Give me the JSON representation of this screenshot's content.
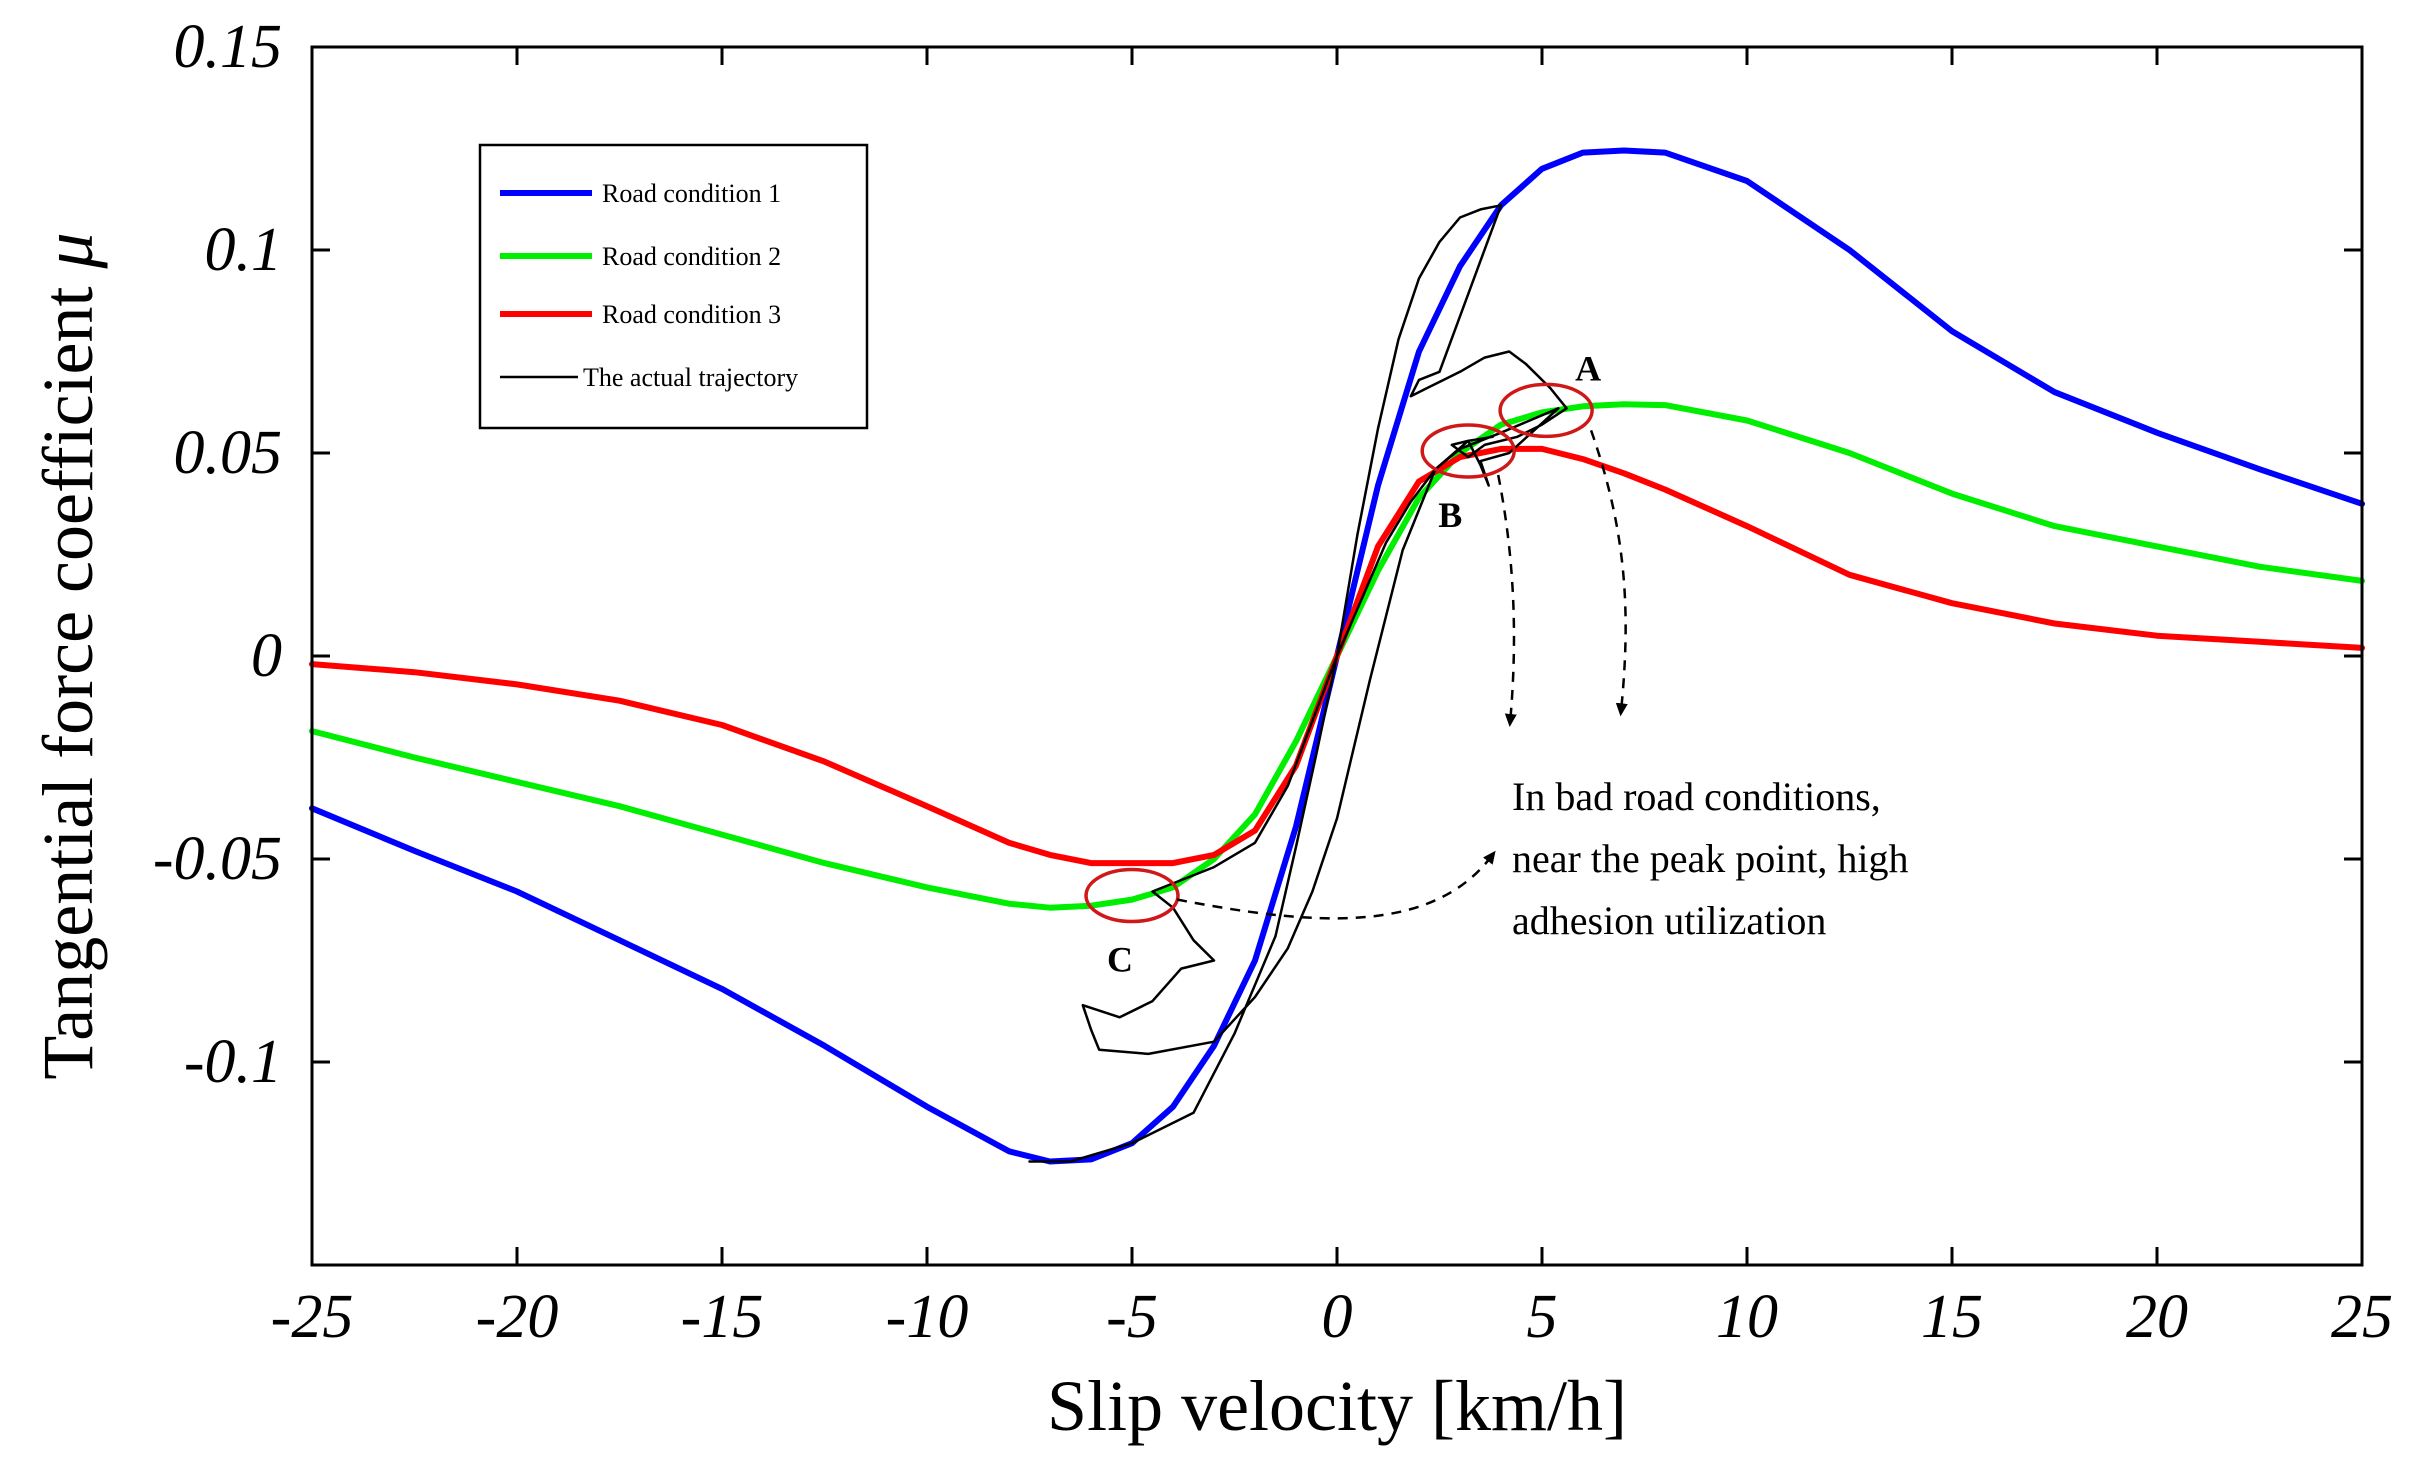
{
  "chart_data": {
    "type": "line",
    "title": "",
    "xlabel": "Slip velocity [km/h]",
    "ylabel": "Tangential force coefficient",
    "ylabel_symbol": "μ",
    "xlim": [
      -25,
      25
    ],
    "ylim": [
      -0.15,
      0.15
    ],
    "x_ticks": [
      -25,
      -20,
      -15,
      -10,
      -5,
      0,
      5,
      10,
      15,
      20,
      25
    ],
    "x_tick_labels": [
      "-25",
      "-20",
      "-15",
      "-10",
      "-5",
      "0",
      "5",
      "10",
      "15",
      "20",
      "25"
    ],
    "y_ticks": [
      -0.1,
      -0.05,
      0,
      0.05,
      0.1,
      0.15
    ],
    "y_tick_labels": [
      "-0.1",
      "-0.05",
      "0",
      "0.05",
      "0.1",
      "0.15"
    ],
    "grid": false,
    "legend_position": "top-left",
    "series": [
      {
        "name": "Road condition 1",
        "color": "#0000ff",
        "x": [
          -25,
          -22.5,
          -20,
          -17.5,
          -15,
          -12.5,
          -10,
          -8,
          -7,
          -6,
          -5,
          -4,
          -3,
          -2,
          -1,
          0,
          1,
          2,
          3,
          4,
          5,
          6,
          7,
          8,
          10,
          12.5,
          15,
          17.5,
          20,
          22.5,
          25
        ],
        "y": [
          -0.0375,
          -0.048,
          -0.058,
          -0.07,
          -0.082,
          -0.096,
          -0.111,
          -0.122,
          -0.1245,
          -0.124,
          -0.12,
          -0.111,
          -0.096,
          -0.075,
          -0.042,
          0,
          0.042,
          0.075,
          0.096,
          0.111,
          0.12,
          0.124,
          0.1245,
          0.124,
          0.117,
          0.1,
          0.08,
          0.065,
          0.055,
          0.046,
          0.0375
        ]
      },
      {
        "name": "Road condition 2",
        "color": "#00ee00",
        "x": [
          -25,
          -22.5,
          -20,
          -17.5,
          -15,
          -12.5,
          -10,
          -8,
          -7,
          -6,
          -5,
          -4,
          -3,
          -2,
          -1,
          0,
          1,
          2,
          3,
          4,
          5,
          6,
          7,
          8,
          10,
          12.5,
          15,
          17.5,
          20,
          22.5,
          25
        ],
        "y": [
          -0.0185,
          -0.025,
          -0.031,
          -0.037,
          -0.044,
          -0.051,
          -0.057,
          -0.061,
          -0.062,
          -0.0615,
          -0.06,
          -0.057,
          -0.05,
          -0.039,
          -0.021,
          0,
          0.021,
          0.039,
          0.05,
          0.057,
          0.06,
          0.0615,
          0.062,
          0.0618,
          0.058,
          0.05,
          0.04,
          0.032,
          0.027,
          0.022,
          0.0185
        ]
      },
      {
        "name": "Road condition 3",
        "color": "#ff0000",
        "x": [
          -25,
          -22.5,
          -20,
          -17.5,
          -15,
          -12.5,
          -10,
          -8,
          -7,
          -6,
          -5,
          -4,
          -3,
          -2,
          -1,
          0,
          1,
          2,
          3,
          4,
          5,
          6,
          7,
          8,
          10,
          12.5,
          15,
          17.5,
          20,
          22.5,
          25
        ],
        "y": [
          -0.002,
          -0.004,
          -0.007,
          -0.011,
          -0.017,
          -0.026,
          -0.037,
          -0.046,
          -0.049,
          -0.051,
          -0.051,
          -0.051,
          -0.049,
          -0.043,
          -0.027,
          0,
          0.027,
          0.043,
          0.049,
          0.051,
          0.051,
          0.0485,
          0.045,
          0.041,
          0.032,
          0.02,
          0.013,
          0.008,
          0.005,
          0.0035,
          0.002
        ]
      },
      {
        "name": "The actual trajectory",
        "color": "#000000",
        "x": [
          -7.5,
          -6.5,
          -5,
          -3.5,
          -2.5,
          -1.5,
          -1,
          -0.5,
          0,
          0.5,
          1,
          1.5,
          2,
          2.5,
          3,
          3.5,
          4,
          2.5,
          2,
          1.8,
          2.2,
          3.0,
          3.6,
          4.2,
          4.6,
          5.2,
          5.6,
          5.0,
          4.4,
          3.6,
          3.2,
          2.8,
          3.2,
          3.5,
          3.7,
          3.5,
          4.2,
          5.4,
          4.0,
          3.0,
          2.4,
          1.8,
          1.2,
          0.6,
          0,
          -0.6,
          -1.2,
          -2,
          -3,
          -4,
          -4.5,
          -4.0,
          -3.5,
          -3.0,
          -3.8,
          -4.5,
          -5.3,
          -6.2,
          -6.0,
          -5.8,
          -4.6,
          -3.0,
          -2.0,
          -1.2,
          -0.6,
          0,
          0.8,
          1.6,
          2.4,
          3.2,
          3.8
        ],
        "y": [
          -0.1245,
          -0.1245,
          -0.12,
          -0.1125,
          -0.093,
          -0.069,
          -0.047,
          -0.024,
          0,
          0.03,
          0.056,
          0.078,
          0.093,
          0.102,
          0.108,
          0.11,
          0.111,
          0.07,
          0.068,
          0.064,
          0.066,
          0.07,
          0.0735,
          0.075,
          0.072,
          0.066,
          0.061,
          0.057,
          0.054,
          0.052,
          0.049,
          0.052,
          0.053,
          0.047,
          0.042,
          0.048,
          0.05,
          0.061,
          0.055,
          0.051,
          0.046,
          0.038,
          0.028,
          0.014,
          0,
          -0.016,
          -0.032,
          -0.046,
          -0.052,
          -0.056,
          -0.058,
          -0.062,
          -0.07,
          -0.075,
          -0.077,
          -0.085,
          -0.089,
          -0.086,
          -0.092,
          -0.097,
          -0.098,
          -0.095,
          -0.084,
          -0.072,
          -0.058,
          -0.04,
          -0.006,
          0.026,
          0.046,
          0.053,
          0.054
        ]
      }
    ],
    "annotations": [
      {
        "label": "A",
        "x": 5.1,
        "y": 0.0605
      },
      {
        "label": "B",
        "x": 3.2,
        "y": 0.0505
      },
      {
        "label": "C",
        "x": -5.0,
        "y": -0.059
      }
    ],
    "note_lines": [
      "In bad road conditions,",
      "near the peak point, high",
      "adhesion utilization"
    ]
  }
}
